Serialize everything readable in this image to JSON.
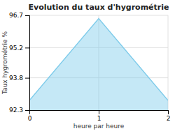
{
  "chart_data": {
    "type": "area",
    "title": "Evolution du taux d'hygrométrie",
    "x_label": "heure par heure",
    "y_label": "Taux hygrométrie %",
    "x": [
      0,
      1,
      2
    ],
    "values": [
      92.75,
      96.55,
      92.75
    ],
    "color": "#7ecbea",
    "xlim": [
      0,
      2
    ],
    "ylim": [
      92.3,
      96.7
    ],
    "xticks": [
      0,
      1,
      2
    ],
    "yticks": [
      92.3,
      93.8,
      95.2,
      96.7
    ],
    "grid": true
  }
}
